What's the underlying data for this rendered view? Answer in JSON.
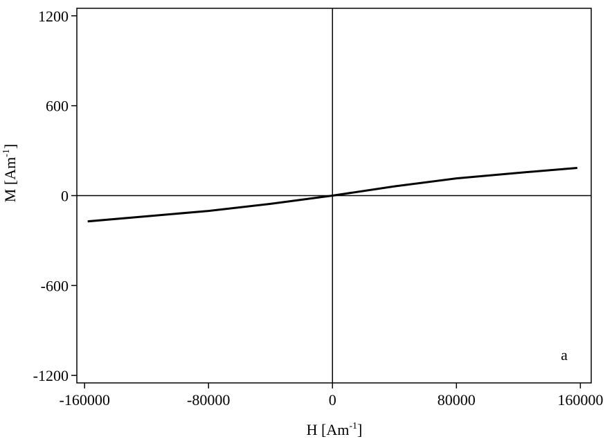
{
  "chart_data": {
    "type": "line",
    "xlabel": [
      "H [Am",
      "-1",
      "]"
    ],
    "ylabel": [
      "M [Am",
      "-1",
      "]"
    ],
    "annotation": "a",
    "x": [
      -158000,
      -120000,
      -80000,
      -40000,
      0,
      40000,
      80000,
      120000,
      158000
    ],
    "series": [
      {
        "color": "#000000",
        "values": [
          -172,
          -138,
          -102,
          -55,
          0,
          62,
          115,
          152,
          185
        ]
      }
    ],
    "xlim": [
      -165000,
      167000
    ],
    "ylim": [
      -1250,
      1250
    ],
    "xticks": [
      -160000,
      -80000,
      0,
      80000,
      160000
    ],
    "yticks": [
      -1200,
      -600,
      0,
      600,
      1200
    ],
    "zero_lines": true
  }
}
